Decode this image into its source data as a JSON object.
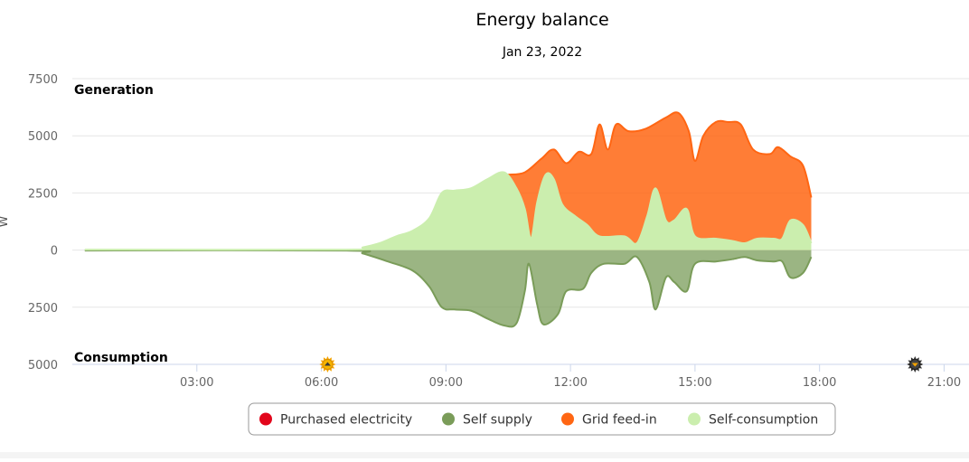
{
  "chart_data": {
    "type": "area",
    "title": "Energy balance",
    "subtitle": "Jan 23, 2022",
    "ylabel": "W",
    "section_labels": {
      "top": "Generation",
      "bottom": "Consumption"
    },
    "ylim": [
      -5000,
      7500
    ],
    "y_ticks": [
      {
        "value": 7500,
        "label": "7500"
      },
      {
        "value": 5000,
        "label": "5000"
      },
      {
        "value": 2500,
        "label": "2500"
      },
      {
        "value": 0,
        "label": "0"
      },
      {
        "value": -2500,
        "label": "2500"
      },
      {
        "value": -5000,
        "label": "5000"
      }
    ],
    "xlim": [
      0,
      21.6
    ],
    "x_ticks": [
      {
        "value": 3,
        "label": "03:00"
      },
      {
        "value": 6,
        "label": "06:00"
      },
      {
        "value": 9,
        "label": "09:00"
      },
      {
        "value": 12,
        "label": "12:00"
      },
      {
        "value": 15,
        "label": "15:00"
      },
      {
        "value": 18,
        "label": "18:00"
      },
      {
        "value": 21,
        "label": "21:00"
      }
    ],
    "markers": [
      {
        "name": "sunrise-icon",
        "x": 6.15
      },
      {
        "name": "sunset-icon",
        "x": 20.3
      }
    ],
    "grid": true,
    "legend_position": "bottom",
    "series": [
      {
        "name": "Purchased electricity",
        "color": "#e2061b",
        "points": []
      },
      {
        "name": "Self supply",
        "color": "#7a9c59",
        "points": [
          [
            0.3,
            -20
          ],
          [
            6.6,
            -20
          ],
          [
            7.0,
            -150
          ],
          [
            7.6,
            -500
          ],
          [
            8.2,
            -900
          ],
          [
            8.6,
            -1600
          ],
          [
            8.9,
            -2500
          ],
          [
            9.2,
            -2600
          ],
          [
            9.6,
            -2650
          ],
          [
            10.0,
            -3000
          ],
          [
            10.4,
            -3300
          ],
          [
            10.7,
            -3200
          ],
          [
            10.9,
            -1800
          ],
          [
            11.0,
            -600
          ],
          [
            11.2,
            -2400
          ],
          [
            11.35,
            -3250
          ],
          [
            11.7,
            -2800
          ],
          [
            11.9,
            -1800
          ],
          [
            12.3,
            -1700
          ],
          [
            12.5,
            -1000
          ],
          [
            12.8,
            -600
          ],
          [
            13.3,
            -600
          ],
          [
            13.6,
            -300
          ],
          [
            13.9,
            -1400
          ],
          [
            14.05,
            -2600
          ],
          [
            14.3,
            -1200
          ],
          [
            14.5,
            -1400
          ],
          [
            14.8,
            -1800
          ],
          [
            15.0,
            -600
          ],
          [
            15.5,
            -500
          ],
          [
            15.9,
            -400
          ],
          [
            16.2,
            -300
          ],
          [
            16.5,
            -450
          ],
          [
            16.9,
            -500
          ],
          [
            17.1,
            -500
          ],
          [
            17.3,
            -1200
          ],
          [
            17.6,
            -1000
          ],
          [
            17.8,
            -300
          ]
        ]
      },
      {
        "name": "Grid feed-in",
        "color": "#ff6613",
        "points": [
          [
            10.3,
            3300
          ],
          [
            10.5,
            3300
          ],
          [
            10.9,
            3400
          ],
          [
            11.3,
            4000
          ],
          [
            11.6,
            4400
          ],
          [
            11.9,
            3800
          ],
          [
            12.2,
            4300
          ],
          [
            12.5,
            4200
          ],
          [
            12.7,
            5500
          ],
          [
            12.9,
            4400
          ],
          [
            13.1,
            5500
          ],
          [
            13.4,
            5200
          ],
          [
            13.8,
            5300
          ],
          [
            14.3,
            5800
          ],
          [
            14.6,
            6000
          ],
          [
            14.85,
            5200
          ],
          [
            15.0,
            3900
          ],
          [
            15.2,
            5000
          ],
          [
            15.5,
            5600
          ],
          [
            15.8,
            5600
          ],
          [
            16.1,
            5500
          ],
          [
            16.4,
            4400
          ],
          [
            16.8,
            4200
          ],
          [
            17.0,
            4500
          ],
          [
            17.3,
            4100
          ],
          [
            17.6,
            3700
          ],
          [
            17.8,
            2300
          ]
        ]
      },
      {
        "name": "Self-consumption",
        "color": "#cbeeae",
        "points": [
          [
            0.3,
            20
          ],
          [
            6.6,
            20
          ],
          [
            7.0,
            120
          ],
          [
            7.4,
            300
          ],
          [
            7.8,
            600
          ],
          [
            8.2,
            850
          ],
          [
            8.6,
            1400
          ],
          [
            8.9,
            2500
          ],
          [
            9.2,
            2600
          ],
          [
            9.6,
            2700
          ],
          [
            10.0,
            3100
          ],
          [
            10.4,
            3400
          ],
          [
            10.7,
            2700
          ],
          [
            10.9,
            1800
          ],
          [
            11.05,
            500
          ],
          [
            11.2,
            2100
          ],
          [
            11.4,
            3300
          ],
          [
            11.6,
            3100
          ],
          [
            11.8,
            2000
          ],
          [
            12.1,
            1500
          ],
          [
            12.4,
            1100
          ],
          [
            12.7,
            600
          ],
          [
            13.3,
            600
          ],
          [
            13.6,
            300
          ],
          [
            13.85,
            1500
          ],
          [
            14.05,
            2700
          ],
          [
            14.3,
            1300
          ],
          [
            14.5,
            1300
          ],
          [
            14.8,
            1800
          ],
          [
            15.0,
            600
          ],
          [
            15.5,
            500
          ],
          [
            15.9,
            400
          ],
          [
            16.2,
            300
          ],
          [
            16.5,
            500
          ],
          [
            16.9,
            500
          ],
          [
            17.1,
            500
          ],
          [
            17.3,
            1300
          ],
          [
            17.6,
            1100
          ],
          [
            17.8,
            300
          ]
        ]
      }
    ]
  },
  "legend": {
    "items": [
      {
        "label": "Purchased electricity",
        "color": "#e2061b"
      },
      {
        "label": "Self supply",
        "color": "#7a9c59"
      },
      {
        "label": "Grid feed-in",
        "color": "#ff6613"
      },
      {
        "label": "Self-consumption",
        "color": "#cbeeae"
      }
    ]
  }
}
